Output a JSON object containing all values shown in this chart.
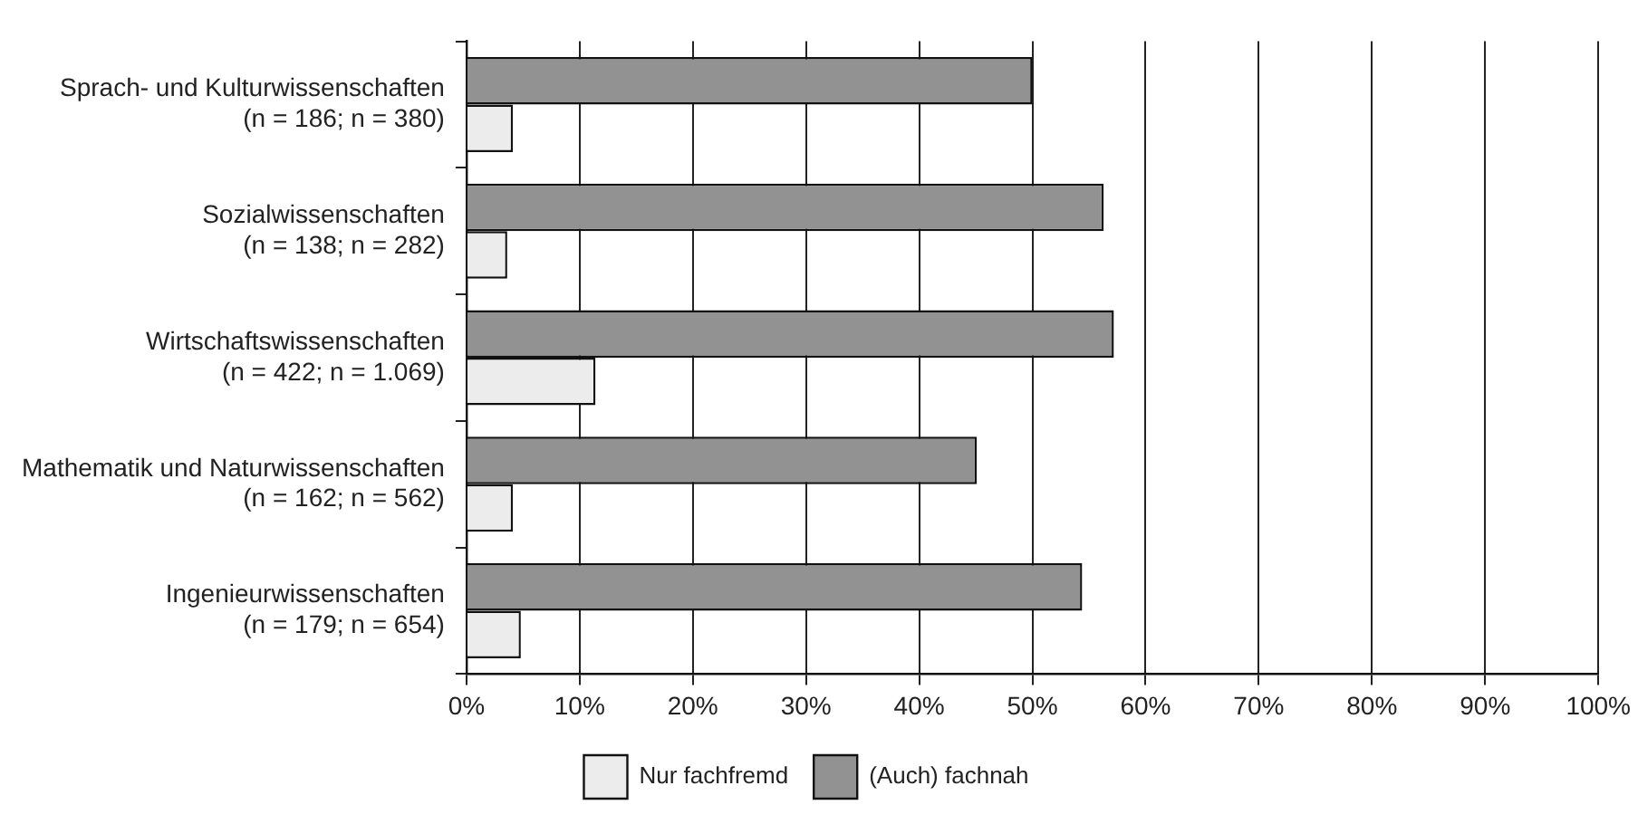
{
  "chart_data": {
    "type": "bar",
    "orientation": "horizontal",
    "categories": [
      "Sprach- und Kulturwissenschaften\n(n = 186; n = 380)",
      "Sozialwissenschaften\n(n = 138; n = 282)",
      "Wirtschaftswissenschaften\n(n = 422; n = 1.069)",
      "Mathematik und Naturwissenschaften\n(n = 162; n = 562)",
      "Ingenieurwissenschaften\n(n = 179; n = 654)"
    ],
    "series": [
      {
        "name": "Nur fachfremd",
        "color": "#ececec",
        "values": [
          4.1,
          3.6,
          11.4,
          4.1,
          4.8
        ]
      },
      {
        "name": "(Auch) fachnah",
        "color": "#929292",
        "values": [
          50,
          56.3,
          57.2,
          45.1,
          54.4
        ]
      }
    ],
    "xlim": [
      0,
      100
    ],
    "xticks": [
      {
        "value": 0,
        "label": "0%"
      },
      {
        "value": 10,
        "label": "10%"
      },
      {
        "value": 20,
        "label": "20%"
      },
      {
        "value": 30,
        "label": "30%"
      },
      {
        "value": 40,
        "label": "40%"
      },
      {
        "value": 50,
        "label": "50%"
      },
      {
        "value": 60,
        "label": "60%"
      },
      {
        "value": 70,
        "label": "70%"
      },
      {
        "value": 80,
        "label": "80%"
      },
      {
        "value": 90,
        "label": "90%"
      },
      {
        "value": 100,
        "label": "100%"
      }
    ],
    "grid": "x",
    "legend": "bottom"
  }
}
